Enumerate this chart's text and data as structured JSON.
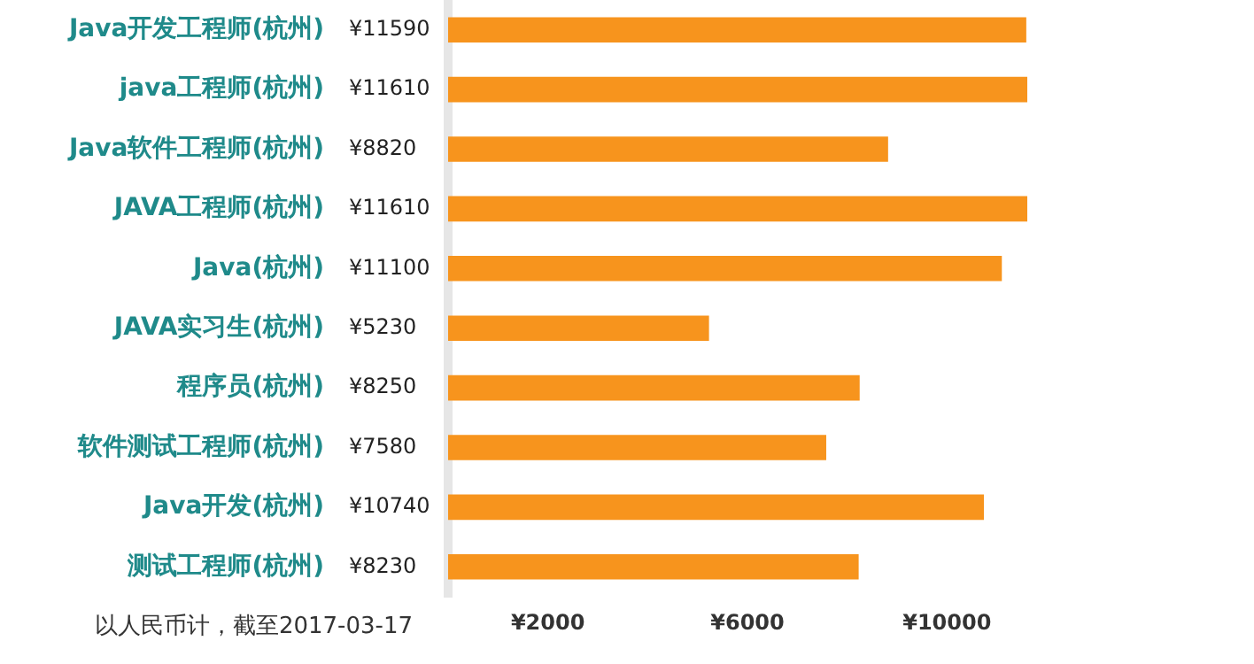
{
  "chart_data": {
    "type": "bar",
    "orientation": "horizontal",
    "categories": [
      "Java开发工程师(杭州)",
      "java工程师(杭州)",
      "Java软件工程师(杭州)",
      "JAVA工程师(杭州)",
      "Java(杭州)",
      "JAVA实习生(杭州)",
      "程序员(杭州)",
      "软件测试工程师(杭州)",
      "Java开发(杭州)",
      "测试工程师(杭州)"
    ],
    "values": [
      11590,
      11610,
      8820,
      11610,
      11100,
      5230,
      8250,
      7580,
      10740,
      8230
    ],
    "value_labels": [
      "¥11590",
      "¥11610",
      "¥8820",
      "¥11610",
      "¥11100",
      "¥5230",
      "¥8250",
      "¥7580",
      "¥10740",
      "¥8230"
    ],
    "color": "#f7941d",
    "xlim": [
      0,
      11610
    ],
    "xticks": [
      {
        "value": 2000,
        "label": "¥2000"
      },
      {
        "value": 6000,
        "label": "¥6000"
      },
      {
        "value": 10000,
        "label": "¥10000"
      }
    ],
    "grid": false,
    "legend": false,
    "annotations": [
      "以人民币计，截至2017-03-17"
    ]
  }
}
